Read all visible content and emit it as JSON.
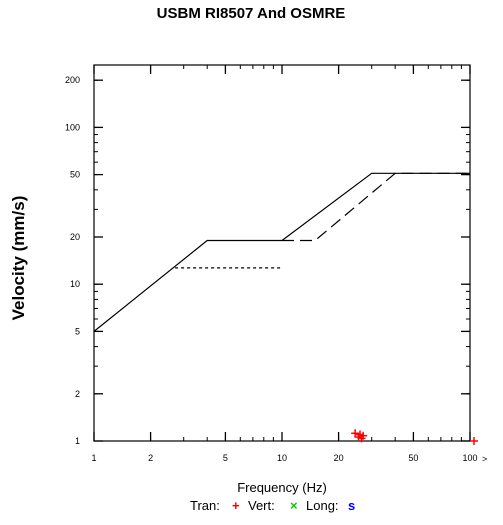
{
  "chart_data": {
    "type": "line",
    "title": "USBM RI8507 And OSMRE",
    "xlabel": "Frequency (Hz)",
    "ylabel": "Velocity (mm/s)",
    "x_scale": "log",
    "y_scale": "log",
    "xlim": [
      1,
      100
    ],
    "ylim": [
      1,
      250
    ],
    "x_ticks": [
      {
        "value": 1,
        "label": "1"
      },
      {
        "value": 2,
        "label": "2"
      },
      {
        "value": 5,
        "label": "5"
      },
      {
        "value": 10,
        "label": "10"
      },
      {
        "value": 20,
        "label": "20"
      },
      {
        "value": 50,
        "label": "50"
      },
      {
        "value": 100,
        "label": "100"
      }
    ],
    "y_ticks": [
      {
        "value": 1,
        "label": "1"
      },
      {
        "value": 2,
        "label": "2"
      },
      {
        "value": 5,
        "label": "5"
      },
      {
        "value": 10,
        "label": "10"
      },
      {
        "value": 20,
        "label": "20"
      },
      {
        "value": 50,
        "label": "50"
      },
      {
        "value": 100,
        "label": "100"
      },
      {
        "value": 200,
        "label": "200"
      }
    ],
    "overflow_label": ">",
    "series": [
      {
        "style": "solid",
        "points": [
          [
            1,
            5
          ],
          [
            4,
            19
          ],
          [
            10,
            19
          ],
          [
            30,
            51
          ],
          [
            100,
            51
          ]
        ]
      },
      {
        "style": "dotted",
        "points": [
          [
            2.7,
            12.7
          ],
          [
            10,
            12.7
          ]
        ]
      },
      {
        "style": "dashed",
        "points": [
          [
            10,
            19
          ],
          [
            15,
            19
          ],
          [
            40,
            51
          ],
          [
            100,
            51
          ]
        ]
      }
    ],
    "markers": [
      {
        "name": "Tran",
        "symbol": "+",
        "color": "#ff0000",
        "points": [
          [
            24.5,
            1.12
          ],
          [
            25.5,
            1.06
          ],
          [
            26,
            1.1
          ],
          [
            26.5,
            1.04
          ],
          [
            27,
            1.08
          ],
          [
            105,
            1.0
          ]
        ]
      },
      {
        "name": "Vert",
        "symbol": "×",
        "color": "#00cc00",
        "points": []
      },
      {
        "name": "Long",
        "symbol": "s",
        "color": "#0000ff",
        "points": []
      }
    ],
    "legend": {
      "position": "bottom",
      "entries": [
        {
          "label": "Tran:",
          "symbol": "+",
          "color": "#ff0000"
        },
        {
          "label": "Vert:",
          "symbol": "×",
          "color": "#00cc00"
        },
        {
          "label": "Long:",
          "symbol": "s",
          "color": "#0000ff"
        }
      ]
    }
  }
}
